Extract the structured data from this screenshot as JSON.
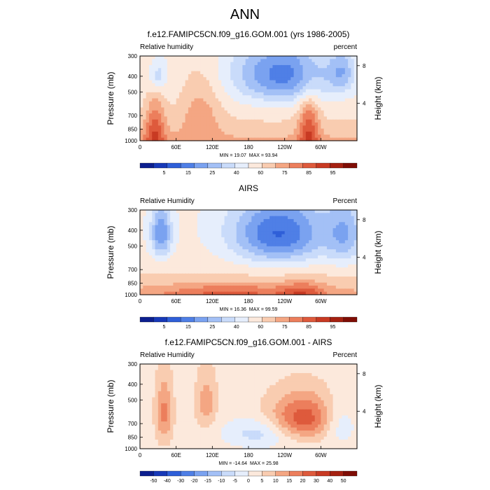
{
  "page": {
    "title": "ANN"
  },
  "chart_data": [
    {
      "type": "heatmap",
      "title": "f.e12.FAMIPC5CN.f09_g16.GOM.001 (yrs 1986-2005)",
      "field_label": "Relative humidity",
      "units_label": "percent",
      "ylabel": "Pressure (mb)",
      "ylabel_right": "Height (km)",
      "xticks": [
        "0",
        "60E",
        "120E",
        "180",
        "120W",
        "60W"
      ],
      "xtick_values": [
        0,
        60,
        120,
        180,
        240,
        300
      ],
      "xlim": [
        0,
        360
      ],
      "yticks": [
        "300",
        "400",
        "500",
        "700",
        "850",
        "1000"
      ],
      "ytick_values": [
        300,
        400,
        500,
        700,
        850,
        1000
      ],
      "ylim": [
        1000,
        300
      ],
      "right_ticks": [
        "8",
        "4"
      ],
      "right_tick_values": [
        8,
        4
      ],
      "min": 19.07,
      "max": 93.94,
      "min_label": "MIN = 19.07",
      "max_label": "MAX = 93.94",
      "colorbar": {
        "labels": [
          "5",
          "15",
          "25",
          "40",
          "60",
          "75",
          "85",
          "95"
        ],
        "colors": [
          "#0c1f8f",
          "#1739b8",
          "#2f5fd8",
          "#4f7fe6",
          "#7aa2f0",
          "#a3c0f6",
          "#c9dbfa",
          "#e6eefc",
          "#fce9dc",
          "#f9ccb0",
          "#f4a683",
          "#ec7e5c",
          "#de5a3c",
          "#c83a23",
          "#a52111",
          "#7f0d05"
        ]
      },
      "features": [
        {
          "kind": "dry",
          "lon": 235,
          "p": 390,
          "strength": 3.3,
          "sx": 55,
          "sp": 120
        },
        {
          "kind": "dry",
          "lon": 335,
          "p": 380,
          "strength": 1.8,
          "sx": 15,
          "sp": 80
        },
        {
          "kind": "dry",
          "lon": 30,
          "p": 400,
          "strength": 1.5,
          "sx": 10,
          "sp": 60
        },
        {
          "kind": "moist",
          "lon": 25,
          "p": 880,
          "strength": 2.5,
          "sx": 12,
          "sp": 260
        },
        {
          "kind": "moist",
          "lon": 280,
          "p": 860,
          "strength": 2.5,
          "sx": 12,
          "sp": 260
        },
        {
          "kind": "moist",
          "lon": 100,
          "p": 650,
          "strength": 1.3,
          "sx": 25,
          "sp": 250
        }
      ]
    },
    {
      "type": "heatmap",
      "title": "AIRS",
      "field_label": "Relative Humidity",
      "units_label": "Percent",
      "ylabel": "Pressure (mb)",
      "ylabel_right": "Height (km)",
      "xticks": [
        "0",
        "60E",
        "120E",
        "180",
        "120W",
        "60W"
      ],
      "xtick_values": [
        0,
        60,
        120,
        180,
        240,
        300
      ],
      "xlim": [
        0,
        360
      ],
      "yticks": [
        "300",
        "400",
        "500",
        "700",
        "850",
        "1000"
      ],
      "ytick_values": [
        300,
        400,
        500,
        700,
        850,
        1000
      ],
      "ylim": [
        1000,
        300
      ],
      "right_ticks": [
        "8",
        "4"
      ],
      "right_tick_values": [
        8,
        4
      ],
      "min": 16.36,
      "max": 99.59,
      "min_label": "MIN = 16.36",
      "max_label": "MAX = 99.59",
      "colorbar": {
        "labels": [
          "5",
          "15",
          "25",
          "40",
          "60",
          "75",
          "85",
          "95"
        ],
        "colors": [
          "#0c1f8f",
          "#1739b8",
          "#2f5fd8",
          "#4f7fe6",
          "#7aa2f0",
          "#a3c0f6",
          "#c9dbfa",
          "#e6eefc",
          "#fce9dc",
          "#f9ccb0",
          "#f4a683",
          "#ec7e5c",
          "#de5a3c",
          "#c83a23",
          "#a52111",
          "#7f0d05"
        ]
      },
      "features": [
        {
          "kind": "dry",
          "lon": 230,
          "p": 420,
          "strength": 3.8,
          "sx": 55,
          "sp": 140
        },
        {
          "kind": "dry",
          "lon": 35,
          "p": 420,
          "strength": 3.0,
          "sx": 12,
          "sp": 110
        },
        {
          "kind": "dry",
          "lon": 340,
          "p": 420,
          "strength": 2.0,
          "sx": 22,
          "sp": 140
        },
        {
          "kind": "moist",
          "lon": 150,
          "p": 980,
          "strength": 1.5,
          "sx": 80,
          "sp": 100
        },
        {
          "kind": "moist",
          "lon": 270,
          "p": 975,
          "strength": 1.6,
          "sx": 25,
          "sp": 110
        }
      ]
    },
    {
      "type": "heatmap",
      "title": "f.e12.FAMIPC5CN.f09_g16.GOM.001 - AIRS",
      "field_label": "Relative Humidity",
      "units_label": "Percent",
      "ylabel": "Pressure (mb)",
      "ylabel_right": "Height (km)",
      "xticks": [
        "0",
        "60E",
        "120E",
        "180",
        "120W",
        "60W"
      ],
      "xtick_values": [
        0,
        60,
        120,
        180,
        240,
        300
      ],
      "xlim": [
        0,
        360
      ],
      "yticks": [
        "300",
        "400",
        "500",
        "700",
        "850",
        "1000"
      ],
      "ytick_values": [
        300,
        400,
        500,
        700,
        850,
        1000
      ],
      "ylim": [
        1000,
        300
      ],
      "right_ticks": [
        "8",
        "4"
      ],
      "right_tick_values": [
        8,
        4
      ],
      "min": -14.64,
      "max": 25.98,
      "min_label": "MIN = -14.64",
      "max_label": "MAX = 25.98",
      "colorbar": {
        "labels": [
          "-50",
          "-40",
          "-30",
          "-20",
          "-15",
          "-10",
          "-5",
          "0",
          "5",
          "10",
          "15",
          "20",
          "30",
          "40",
          "50"
        ],
        "colors": [
          "#0c1f8f",
          "#1739b8",
          "#2f5fd8",
          "#4f7fe6",
          "#7aa2f0",
          "#a3c0f6",
          "#c9dbfa",
          "#e6eefc",
          "#fce9dc",
          "#f9ccb0",
          "#f4a683",
          "#ec7e5c",
          "#de5a3c",
          "#c83a23",
          "#a52111",
          "#7f0d05"
        ]
      },
      "features": [
        {
          "kind": "moist",
          "lon": 270,
          "p": 650,
          "strength": 3.0,
          "sx": 40,
          "sp": 150
        },
        {
          "kind": "moist",
          "lon": 40,
          "p": 600,
          "strength": 2.0,
          "sx": 10,
          "sp": 200
        },
        {
          "kind": "moist",
          "lon": 110,
          "p": 520,
          "strength": 1.5,
          "sx": 12,
          "sp": 150
        },
        {
          "kind": "dry",
          "lon": 200,
          "p": 800,
          "strength": 1.5,
          "sx": 40,
          "sp": 120
        },
        {
          "kind": "dry",
          "lon": 330,
          "p": 700,
          "strength": 1.3,
          "sx": 20,
          "sp": 150
        }
      ]
    }
  ]
}
